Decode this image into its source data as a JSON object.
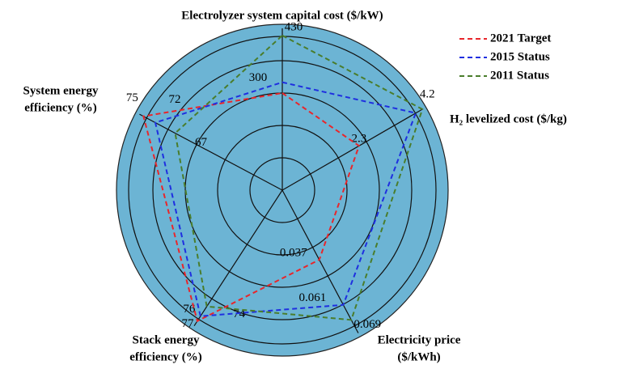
{
  "chart_data": {
    "type": "radar",
    "axes": [
      {
        "label": [
          "Electrolyzer system capital cost ($/kW)"
        ],
        "lim": [
          0,
          450
        ],
        "ticks": [
          300,
          430
        ]
      },
      {
        "label": [
          "H₂ levelized cost ($/kg)"
        ],
        "lim": [
          0,
          4.2
        ],
        "ticks": [
          2.3,
          4.2
        ]
      },
      {
        "label": [
          "Electricity price",
          "($/kWh)"
        ],
        "lim": [
          0,
          0.076
        ],
        "ticks": [
          0.037,
          0.061,
          0.069
        ]
      },
      {
        "label": [
          "Stack energy",
          "efficiency (%)"
        ],
        "lim": [
          50,
          78
        ],
        "ticks": [
          74,
          76,
          77
        ]
      },
      {
        "label": [
          "System energy",
          "efficiency (%)"
        ],
        "lim": [
          40,
          76
        ],
        "ticks": [
          67,
          72,
          75
        ]
      }
    ],
    "series": [
      {
        "name": "2021 Target",
        "color": "#e8262b",
        "values": [
          270,
          2.3,
          0.037,
          77,
          75
        ]
      },
      {
        "name": "2015 Status",
        "color": "#1f2fe0",
        "values": [
          300,
          4.0,
          0.061,
          76,
          72
        ]
      },
      {
        "name": "2011 Status",
        "color": "#4a7d2c",
        "values": [
          430,
          4.2,
          0.069,
          74,
          67
        ]
      }
    ],
    "legend": "upper right"
  }
}
